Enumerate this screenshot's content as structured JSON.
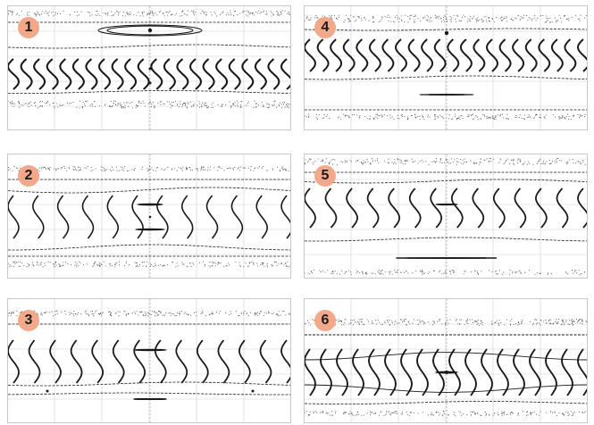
{
  "panels": [
    {
      "id": "p1",
      "label": "1",
      "variant": "A"
    },
    {
      "id": "p2",
      "label": "2",
      "variant": "B"
    },
    {
      "id": "p3",
      "label": "3",
      "variant": "C"
    },
    {
      "id": "p4",
      "label": "4",
      "variant": "D"
    },
    {
      "id": "p5",
      "label": "5",
      "variant": "E"
    },
    {
      "id": "p6",
      "label": "6",
      "variant": "F"
    }
  ],
  "colors": {
    "badge_fill": "#f4a88a",
    "curve": "#1a1a1a",
    "grid": "#cfcfcf",
    "scatter": "#555555"
  }
}
